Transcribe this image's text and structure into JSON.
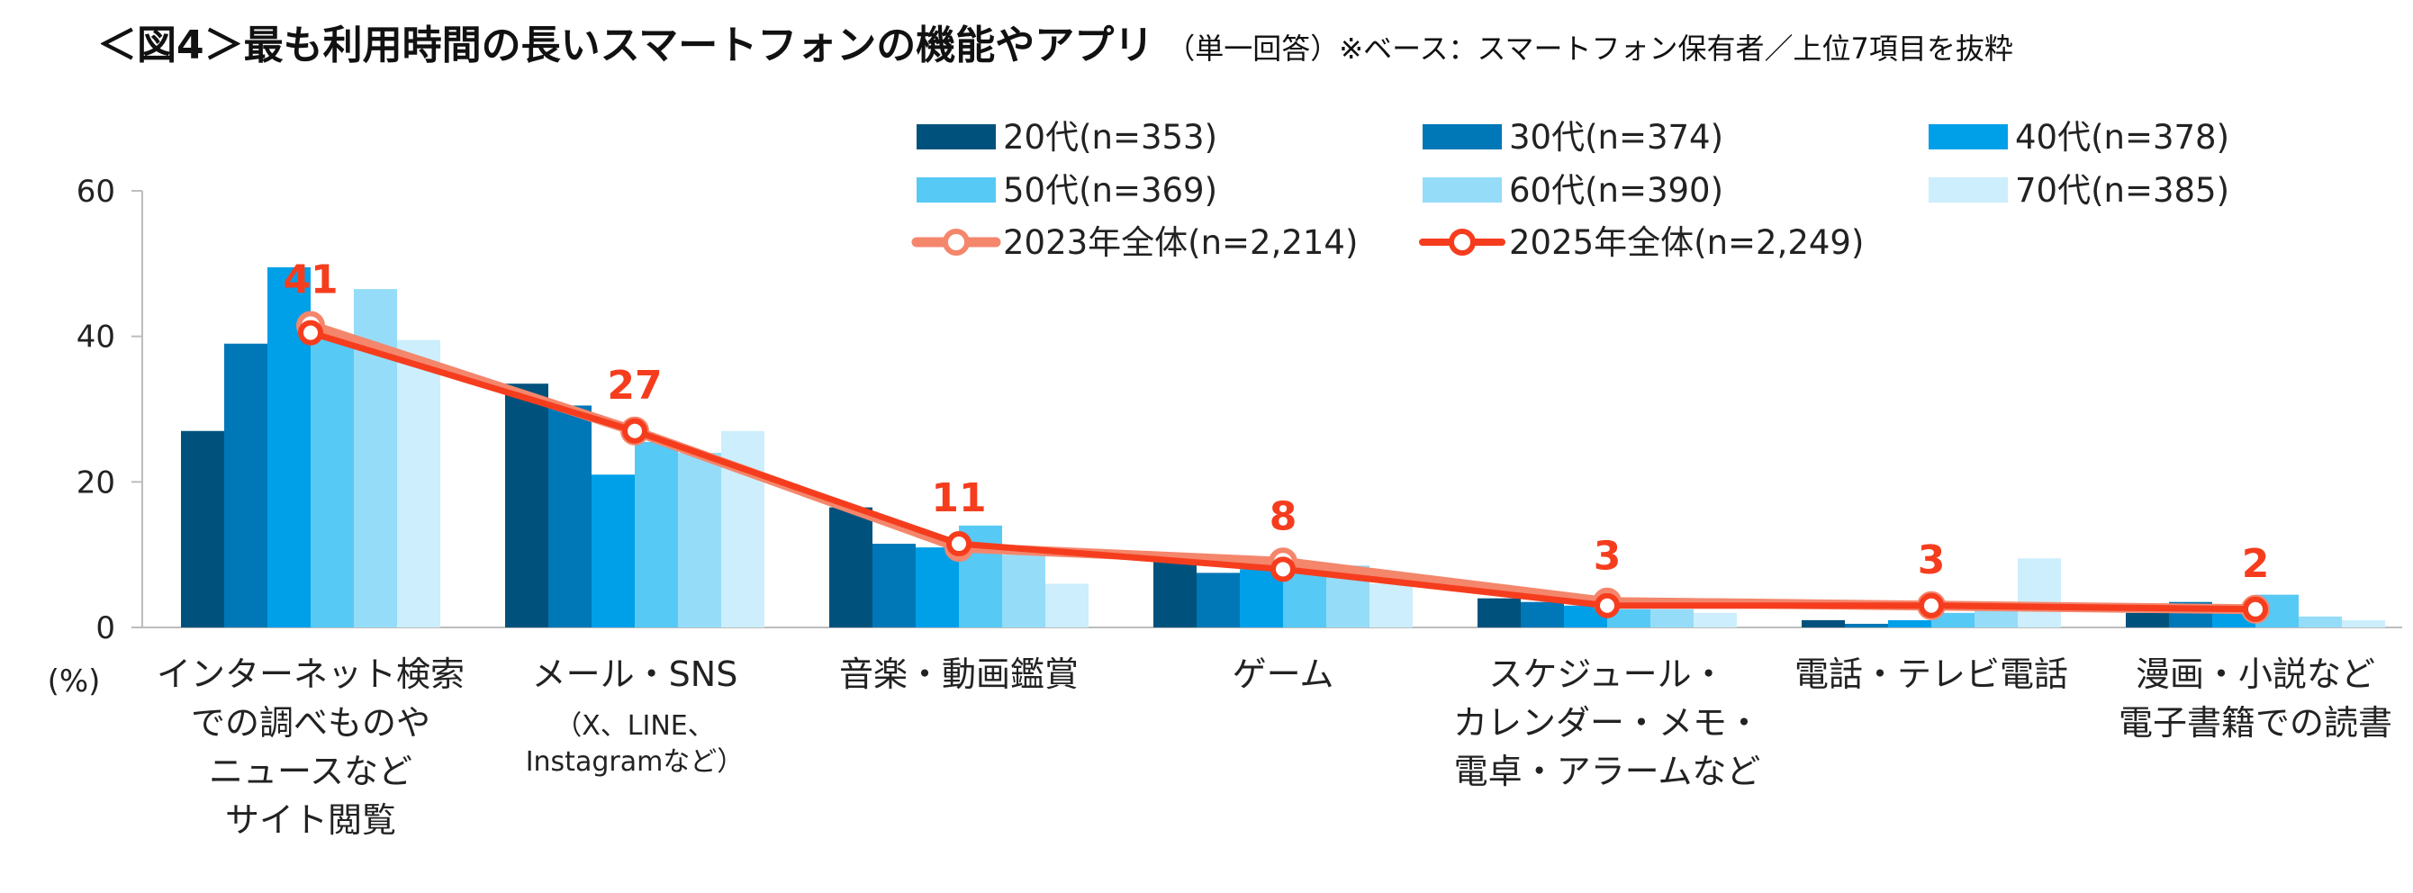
{
  "title": {
    "main": "＜図4＞最も利用時間の長いスマートフォンの機能やアプリ",
    "sub": "（単一回答）※ベース：スマートフォン保有者／上位7項目を抜粋"
  },
  "chart_data": {
    "type": "bar",
    "title": "最も利用時間の長いスマートフォンの機能やアプリ",
    "ylabel": "(%)",
    "ylim": [
      0,
      60
    ],
    "yticks": [
      "0",
      "20",
      "40",
      "60"
    ],
    "grid": false,
    "categories": [
      [
        "インターネット検索",
        "での調べものや",
        "ニュースなど",
        "サイト閲覧"
      ],
      [
        "メール・SNS",
        "（X、LINE、",
        "Instagramなど）"
      ],
      [
        "音楽・動画鑑賞"
      ],
      [
        "ゲーム"
      ],
      [
        "スケジュール・",
        "カレンダー・メモ・",
        "電卓・アラームなど"
      ],
      [
        "電話・テレビ電話"
      ],
      [
        "漫画・小説など",
        "電子書籍での読書"
      ]
    ],
    "series": [
      {
        "name": "20代(n=353)",
        "color": "#00527c",
        "values": [
          27,
          33.5,
          16.5,
          9,
          4,
          1,
          2
        ]
      },
      {
        "name": "30代(n=374)",
        "color": "#0077b6",
        "values": [
          39,
          30.5,
          11.5,
          7.5,
          3.5,
          0.5,
          3.5
        ]
      },
      {
        "name": "40代(n=378)",
        "color": "#00a0e9",
        "values": [
          49.5,
          21,
          11,
          8,
          3,
          1,
          3
        ]
      },
      {
        "name": "50代(n=369)",
        "color": "#57c9f5",
        "values": [
          40,
          25.5,
          14,
          8,
          2.5,
          2,
          4.5
        ]
      },
      {
        "name": "60代(n=390)",
        "color": "#95dcf9",
        "values": [
          46.5,
          24,
          10,
          8.5,
          2.5,
          3,
          1.5
        ]
      },
      {
        "name": "70代(n=385)",
        "color": "#cdeefc",
        "values": [
          39.5,
          27,
          6,
          6,
          2,
          9.5,
          1
        ]
      }
    ],
    "lines": [
      {
        "name": "2023年全体(n=2,214)",
        "color": "#f4866c",
        "values": [
          41.5,
          27,
          11,
          9,
          3.5,
          3,
          2.5
        ]
      },
      {
        "name": "2025年全体(n=2,249)",
        "color": "#f53d1e",
        "values": [
          40.5,
          27,
          11.5,
          8,
          3,
          3,
          2.5
        ]
      }
    ],
    "data_labels": [
      "41",
      "27",
      "11",
      "8",
      "3",
      "3",
      "2"
    ]
  }
}
